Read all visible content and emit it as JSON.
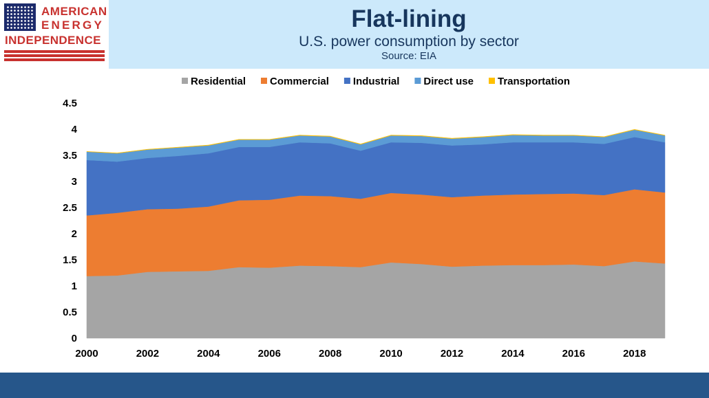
{
  "logo": {
    "line1": "AMERICAN",
    "line2": "ENERGY",
    "line3": "INDEPENDENCE"
  },
  "header": {
    "title": "Flat-lining",
    "subtitle": "U.S. power consumption by sector",
    "source": "Source: EIA"
  },
  "colors": {
    "header_band": "#cce9fb",
    "footer": "#26568a",
    "residential": "#a5a5a5",
    "commercial": "#ed7d31",
    "industrial": "#4472c4",
    "direct_use": "#5b9bd5",
    "transportation": "#ffc000"
  },
  "chart_data": {
    "type": "area",
    "stacked": true,
    "title": "",
    "xlabel": "",
    "ylabel": "",
    "x": [
      2000,
      2001,
      2002,
      2003,
      2004,
      2005,
      2006,
      2007,
      2008,
      2009,
      2010,
      2011,
      2012,
      2013,
      2014,
      2015,
      2016,
      2017,
      2018,
      2019
    ],
    "xticks": [
      2000,
      2002,
      2004,
      2006,
      2008,
      2010,
      2012,
      2014,
      2016,
      2018
    ],
    "yticks": [
      "0",
      "0.5",
      "1",
      "1.5",
      "2",
      "2.5",
      "3",
      "3.5",
      "4",
      "4.5"
    ],
    "ylim": [
      0,
      4.5
    ],
    "grid": false,
    "legend_position": "top",
    "series": [
      {
        "name": "Residential",
        "color": "#a5a5a5",
        "values": [
          1.19,
          1.2,
          1.27,
          1.28,
          1.29,
          1.36,
          1.35,
          1.39,
          1.38,
          1.36,
          1.45,
          1.42,
          1.37,
          1.39,
          1.4,
          1.4,
          1.41,
          1.38,
          1.47,
          1.43
        ]
      },
      {
        "name": "Commercial",
        "color": "#ed7d31",
        "values": [
          1.16,
          1.2,
          1.2,
          1.2,
          1.23,
          1.28,
          1.3,
          1.34,
          1.34,
          1.31,
          1.33,
          1.33,
          1.33,
          1.34,
          1.35,
          1.36,
          1.36,
          1.36,
          1.38,
          1.36
        ]
      },
      {
        "name": "Industrial",
        "color": "#4472c4",
        "values": [
          1.06,
          0.98,
          0.98,
          1.01,
          1.02,
          1.02,
          1.01,
          1.02,
          1.01,
          0.92,
          0.97,
          0.99,
          0.99,
          0.98,
          1.0,
          0.99,
          0.98,
          0.98,
          1.0,
          0.96
        ]
      },
      {
        "name": "Direct use",
        "color": "#5b9bd5",
        "values": [
          0.16,
          0.16,
          0.16,
          0.16,
          0.15,
          0.14,
          0.14,
          0.13,
          0.13,
          0.12,
          0.13,
          0.13,
          0.13,
          0.14,
          0.14,
          0.13,
          0.13,
          0.13,
          0.14,
          0.13
        ]
      },
      {
        "name": "Transportation",
        "color": "#ffc000",
        "values": [
          0.005,
          0.006,
          0.007,
          0.007,
          0.007,
          0.007,
          0.007,
          0.008,
          0.008,
          0.008,
          0.008,
          0.008,
          0.007,
          0.008,
          0.008,
          0.008,
          0.007,
          0.008,
          0.008,
          0.007
        ]
      }
    ]
  }
}
